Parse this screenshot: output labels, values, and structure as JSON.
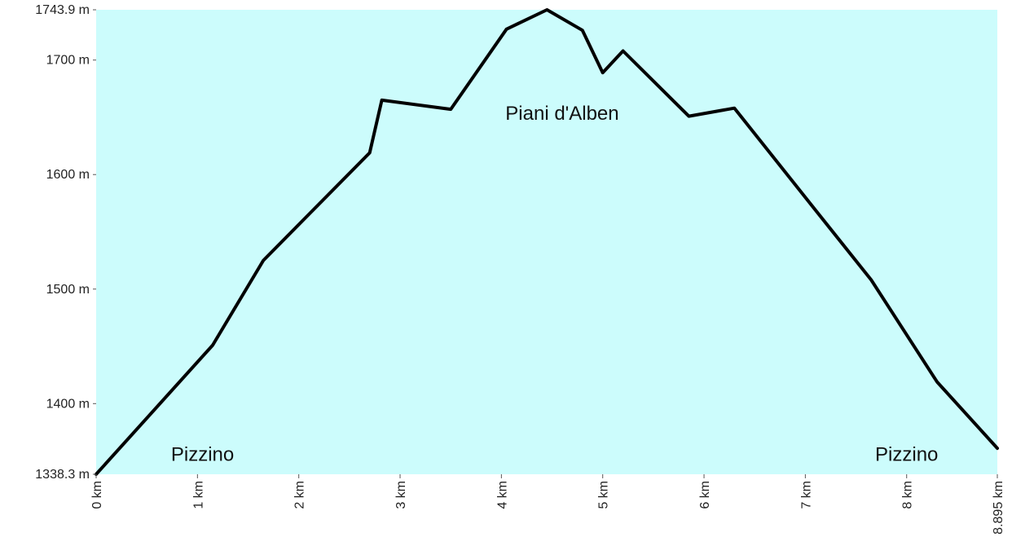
{
  "chart_data": {
    "type": "area",
    "xlabel": "",
    "ylabel": "",
    "xlim": [
      0,
      8.895
    ],
    "ylim": [
      1338.3,
      1743.9
    ],
    "x_ticks": [
      {
        "value": 0,
        "label": "0 km"
      },
      {
        "value": 1,
        "label": "1 km"
      },
      {
        "value": 2,
        "label": "2 km"
      },
      {
        "value": 3,
        "label": "3 km"
      },
      {
        "value": 4,
        "label": "4 km"
      },
      {
        "value": 5,
        "label": "5 km"
      },
      {
        "value": 6,
        "label": "6 km"
      },
      {
        "value": 7,
        "label": "7 km"
      },
      {
        "value": 8,
        "label": "8 km"
      },
      {
        "value": 8.895,
        "label": "8.895 km"
      }
    ],
    "y_ticks": [
      {
        "value": 1338.3,
        "label": "1338.3 m"
      },
      {
        "value": 1400,
        "label": "1400 m"
      },
      {
        "value": 1500,
        "label": "1500 m"
      },
      {
        "value": 1600,
        "label": "1600 m"
      },
      {
        "value": 1700,
        "label": "1700 m"
      },
      {
        "value": 1743.9,
        "label": "1743.9 m"
      }
    ],
    "series": [
      {
        "x": [
          0,
          1.15,
          1.65,
          2.7,
          2.82,
          3.5,
          4.05,
          4.45,
          4.8,
          5.0,
          5.2,
          5.85,
          6.3,
          7.0,
          7.65,
          8.3,
          8.895
        ],
        "y": [
          1338.3,
          1451,
          1525,
          1619,
          1665,
          1657,
          1727,
          1743.9,
          1726,
          1689,
          1708,
          1651,
          1658,
          1580,
          1508,
          1419,
          1361
        ]
      }
    ],
    "annotations": [
      {
        "text": "Pizzino",
        "x": 1.05,
        "y": 1350
      },
      {
        "text": "Piani d'Alben",
        "x": 4.6,
        "y": 1648
      },
      {
        "text": "Pizzino",
        "x": 8.0,
        "y": 1350
      }
    ],
    "fill_color": "#ccfcfc",
    "line_color": "#000000",
    "grid": false,
    "legend": "none"
  }
}
